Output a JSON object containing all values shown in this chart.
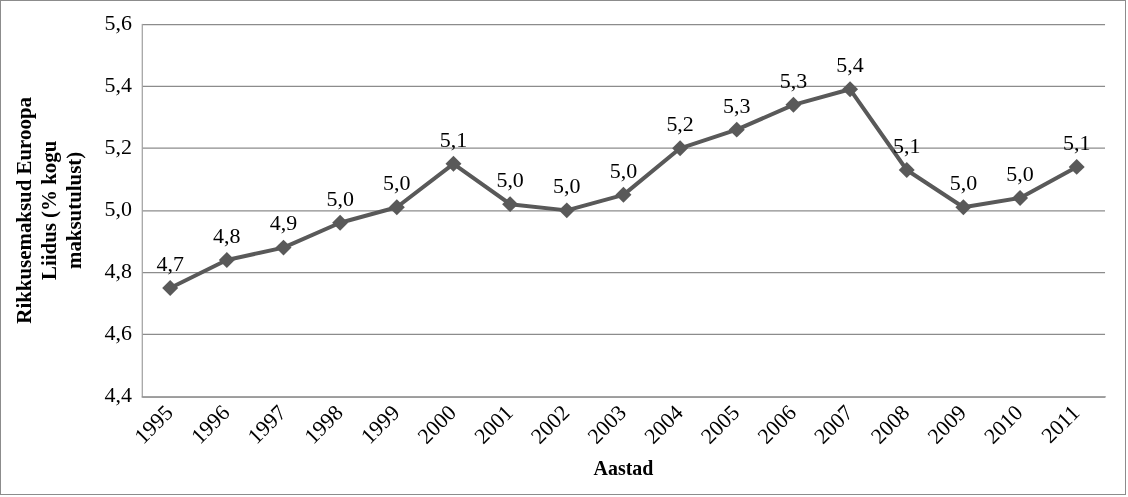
{
  "chart_data": {
    "type": "line",
    "xlabel": "Aastad",
    "ylabel": "Rikkusemaksud Euroopa Liidus (% kogu maksutulust)",
    "categories": [
      "1995",
      "1996",
      "1997",
      "1998",
      "1999",
      "2000",
      "2001",
      "2002",
      "2003",
      "2004",
      "2005",
      "2006",
      "2007",
      "2008",
      "2009",
      "2010",
      "2011"
    ],
    "series": [
      {
        "color": "#595959",
        "values": [
          4.75,
          4.84,
          4.88,
          4.96,
          5.01,
          5.15,
          5.02,
          5.0,
          5.05,
          5.2,
          5.26,
          5.34,
          5.39,
          5.13,
          5.01,
          5.04,
          5.14
        ],
        "value_labels": [
          "4,7",
          "4,8",
          "4,9",
          "5,0",
          "5,0",
          "5,1",
          "5,0",
          "5,0",
          "5,0",
          "5,2",
          "5,3",
          "5,3",
          "5,4",
          "5,1",
          "5,0",
          "5,0",
          "5,1"
        ]
      }
    ],
    "ylim": [
      4.4,
      5.6
    ],
    "yticks": [
      {
        "value": 4.4,
        "label": "4,4"
      },
      {
        "value": 4.6,
        "label": "4,6"
      },
      {
        "value": 4.8,
        "label": "4,8"
      },
      {
        "value": 5.0,
        "label": "5,0"
      },
      {
        "value": 5.2,
        "label": "5,2"
      },
      {
        "value": 5.4,
        "label": "5,4"
      },
      {
        "value": 5.6,
        "label": "5,6"
      }
    ],
    "grid": "y",
    "legend": false,
    "marker": "diamond",
    "line_style": "solid"
  }
}
